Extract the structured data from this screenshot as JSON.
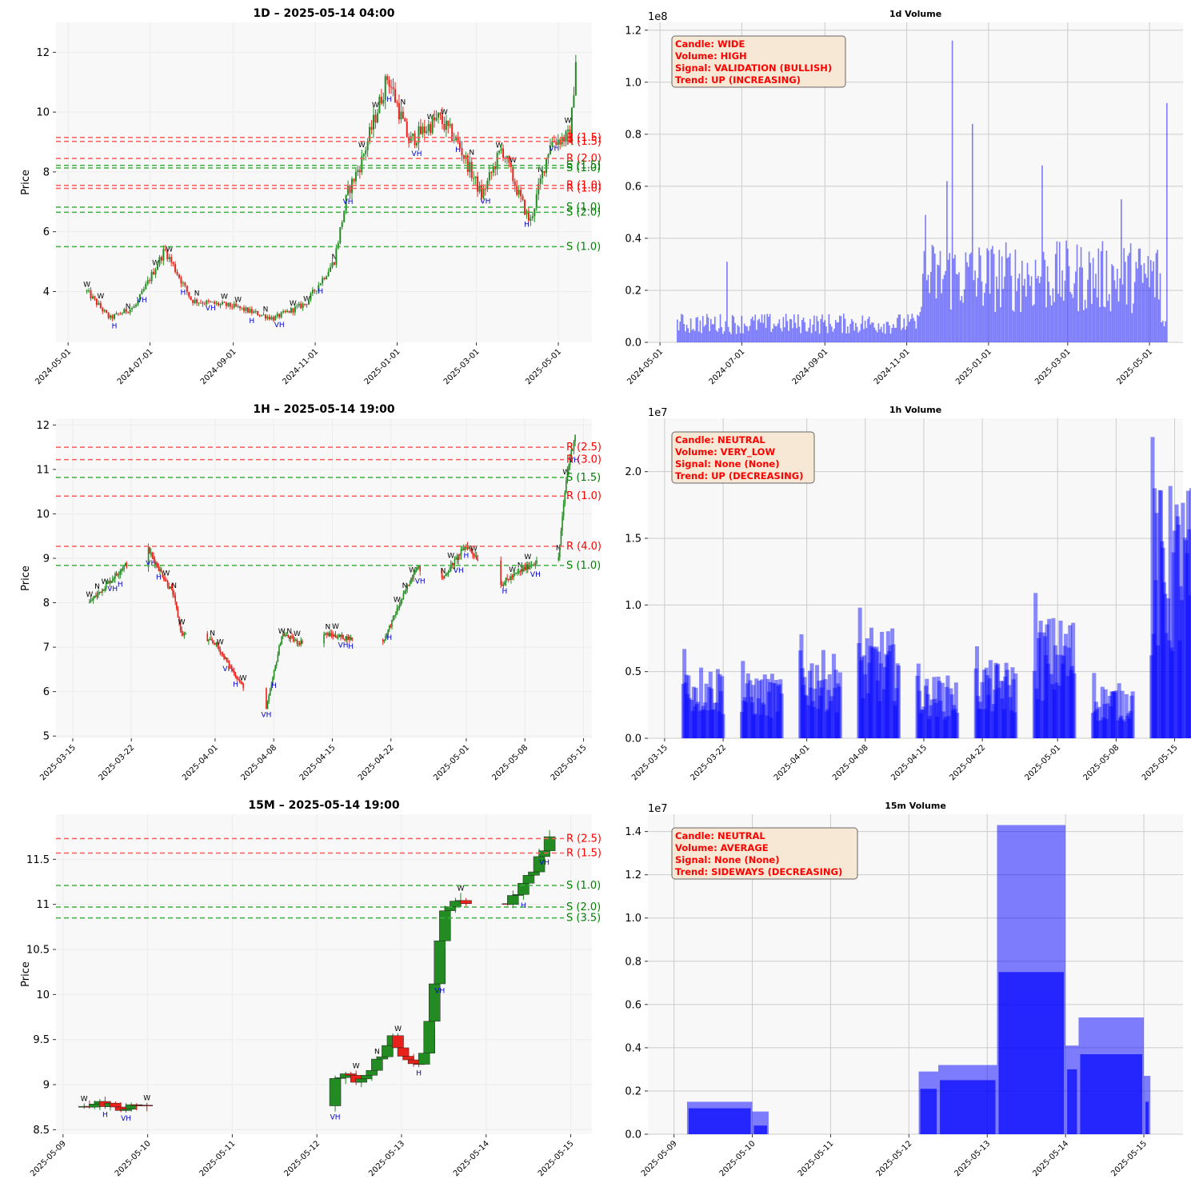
{
  "colors": {
    "up": "#228b22",
    "down": "#e8221a",
    "res": "#ff5a5a",
    "sup": "#3cb03c",
    "vol": "#0000ff",
    "info_text": "#ff0000",
    "info_bg": "#f6e8d4",
    "panel_bg": "#f8f8f8"
  },
  "chart_data": [
    {
      "id": "p1",
      "type": "candlestick",
      "title": "1D – 2025-05-14 04:00",
      "ylabel": "Price",
      "ylim": [
        2.3,
        13.0
      ],
      "yticks": [
        4,
        6,
        8,
        10,
        12
      ],
      "x_start": "2024-04-22",
      "x_end": "2025-05-26",
      "xticks": [
        "2024-05-01",
        "2024-07-01",
        "2024-09-01",
        "2024-11-01",
        "2025-01-01",
        "2025-03-01",
        "2025-05-01"
      ],
      "price_path": [
        [
          "2024-05-15",
          4.0
        ],
        [
          "2024-06-01",
          3.1
        ],
        [
          "2024-06-20",
          3.5
        ],
        [
          "2024-07-12",
          5.4
        ],
        [
          "2024-08-01",
          3.7
        ],
        [
          "2024-09-01",
          3.5
        ],
        [
          "2024-10-01",
          3.1
        ],
        [
          "2024-10-25",
          3.6
        ],
        [
          "2024-11-15",
          5.0
        ],
        [
          "2024-11-25",
          7.3
        ],
        [
          "2024-12-05",
          8.3
        ],
        [
          "2024-12-25",
          11.2
        ],
        [
          "2025-01-10",
          9.0
        ],
        [
          "2025-02-01",
          9.8
        ],
        [
          "2025-02-15",
          9.0
        ],
        [
          "2025-03-05",
          7.2
        ],
        [
          "2025-03-20",
          8.8
        ],
        [
          "2025-04-01",
          7.3
        ],
        [
          "2025-04-10",
          6.3
        ],
        [
          "2025-04-25",
          9.0
        ],
        [
          "2025-05-10",
          9.2
        ],
        [
          "2025-05-14",
          11.8
        ]
      ],
      "levels": [
        {
          "price": 9.15,
          "label": "R (1.5)",
          "kind": "R"
        },
        {
          "price": 9.02,
          "label": "R (1.5)",
          "kind": "R"
        },
        {
          "price": 8.45,
          "label": "R (2.0)",
          "kind": "R"
        },
        {
          "price": 8.22,
          "label": "S (1.5)",
          "kind": "S"
        },
        {
          "price": 8.13,
          "label": "S (1.0)",
          "kind": "S"
        },
        {
          "price": 7.55,
          "label": "R (1.0)",
          "kind": "R"
        },
        {
          "price": 7.45,
          "label": "R (1.0)",
          "kind": "R"
        },
        {
          "price": 6.82,
          "label": "S (1.0)",
          "kind": "S"
        },
        {
          "price": 6.65,
          "label": "S (2.0)",
          "kind": "S"
        },
        {
          "price": 5.5,
          "label": "S (1.0)",
          "kind": "S"
        }
      ]
    },
    {
      "id": "p2",
      "type": "bar",
      "title": "1d Volume",
      "multiplier": "1e8",
      "ylim": [
        0,
        1.23
      ],
      "yticks": [
        0.0,
        0.2,
        0.4,
        0.6,
        0.8,
        1.0,
        1.2
      ],
      "x_start": "2024-04-22",
      "x_end": "2025-05-26",
      "xticks": [
        "2024-05-01",
        "2024-07-01",
        "2024-09-01",
        "2024-11-01",
        "2025-01-01",
        "2025-03-01",
        "2025-05-01"
      ],
      "series_start": "2024-05-14",
      "series_end": "2025-05-14",
      "spikes": [
        [
          "2024-06-20",
          0.31
        ],
        [
          "2024-11-15",
          0.49
        ],
        [
          "2024-12-01",
          0.62
        ],
        [
          "2024-12-05",
          1.16
        ],
        [
          "2024-12-20",
          0.84
        ],
        [
          "2025-02-10",
          0.68
        ],
        [
          "2025-04-10",
          0.55
        ],
        [
          "2025-05-14",
          0.92
        ]
      ],
      "info": [
        "Candle: WIDE",
        "Volume: HIGH",
        "Signal: VALIDATION (BULLISH)",
        "Trend: UP (INCREASING)"
      ]
    },
    {
      "id": "p3",
      "type": "candlestick",
      "title": "1H – 2025-05-14 19:00",
      "ylabel": "Price",
      "ylim": [
        4.95,
        12.15
      ],
      "yticks": [
        5,
        6,
        7,
        8,
        9,
        10,
        11,
        12
      ],
      "x_start": "2025-03-13",
      "x_end": "2025-05-16",
      "xticks": [
        "2025-03-15",
        "2025-03-22",
        "2025-04-01",
        "2025-04-08",
        "2025-04-15",
        "2025-04-22",
        "2025-05-01",
        "2025-05-08",
        "2025-05-15"
      ],
      "price_path": [
        [
          "2025-03-17",
          8.0
        ],
        [
          "2025-03-21",
          8.8
        ],
        [
          "2025-03-24",
          9.2
        ],
        [
          "2025-03-27",
          8.2
        ],
        [
          "2025-03-28",
          7.3
        ],
        [
          "2025-04-01",
          7.1
        ],
        [
          "2025-04-04",
          6.2
        ],
        [
          "2025-04-07",
          5.5
        ],
        [
          "2025-04-09",
          7.3
        ],
        [
          "2025-04-11",
          7.1
        ],
        [
          "2025-04-14",
          7.3
        ],
        [
          "2025-04-17",
          7.2
        ],
        [
          "2025-04-21",
          7.1
        ],
        [
          "2025-04-25",
          8.8
        ],
        [
          "2025-04-28",
          8.5
        ],
        [
          "2025-05-01",
          9.3
        ],
        [
          "2025-05-05",
          8.4
        ],
        [
          "2025-05-09",
          8.9
        ],
        [
          "2025-05-12",
          9.0
        ],
        [
          "2025-05-13",
          10.9
        ],
        [
          "2025-05-14",
          11.8
        ]
      ],
      "levels": [
        {
          "price": 11.5,
          "label": "R (2.5)",
          "kind": "R"
        },
        {
          "price": 11.22,
          "label": "R (3.0)",
          "kind": "R"
        },
        {
          "price": 10.82,
          "label": "S (1.5)",
          "kind": "S"
        },
        {
          "price": 10.4,
          "label": "R (1.0)",
          "kind": "R"
        },
        {
          "price": 9.27,
          "label": "R (4.0)",
          "kind": "R"
        },
        {
          "price": 8.84,
          "label": "S (1.0)",
          "kind": "S"
        }
      ]
    },
    {
      "id": "p4",
      "type": "bar",
      "title": "1h Volume",
      "multiplier": "1e7",
      "ylim": [
        0,
        2.4
      ],
      "yticks": [
        0.0,
        0.5,
        1.0,
        1.5,
        2.0
      ],
      "x_start": "2025-03-13",
      "x_end": "2025-05-16",
      "xticks": [
        "2025-03-15",
        "2025-03-22",
        "2025-04-01",
        "2025-04-08",
        "2025-04-15",
        "2025-04-22",
        "2025-05-01",
        "2025-05-08",
        "2025-05-15"
      ],
      "session_clusters": [
        [
          "2025-03-17",
          0.67
        ],
        [
          "2025-03-24",
          0.58
        ],
        [
          "2025-03-31",
          0.78
        ],
        [
          "2025-04-07",
          0.98
        ],
        [
          "2025-04-14",
          0.56
        ],
        [
          "2025-04-21",
          0.69
        ],
        [
          "2025-04-28",
          1.09
        ],
        [
          "2025-05-05",
          0.49
        ],
        [
          "2025-05-12",
          2.26
        ]
      ],
      "info": [
        "Candle: NEUTRAL",
        "Volume: VERY_LOW",
        "Signal: None (None)",
        "Trend: UP (DECREASING)"
      ]
    },
    {
      "id": "p5",
      "type": "candlestick",
      "title": "15M – 2025-05-14 19:00",
      "ylabel": "Price",
      "ylim": [
        8.45,
        12.0
      ],
      "yticks": [
        8.5,
        9.0,
        9.5,
        10.0,
        10.5,
        11.0,
        11.5
      ],
      "x_start": "2025-05-08T22:00",
      "x_end": "2025-05-15T06:00",
      "xticks": [
        "2025-05-09",
        "2025-05-10",
        "2025-05-11",
        "2025-05-12",
        "2025-05-13",
        "2025-05-14",
        "2025-05-15"
      ],
      "price_path": [
        [
          "2025-05-09T06:00",
          8.75
        ],
        [
          "2025-05-09T12:00",
          8.8
        ],
        [
          "2025-05-09T18:00",
          8.72
        ],
        [
          "2025-05-10T00:00",
          8.8
        ],
        [
          "2025-05-12T06:00",
          9.1
        ],
        [
          "2025-05-12T12:00",
          9.05
        ],
        [
          "2025-05-12T18:00",
          9.3
        ],
        [
          "2025-05-12T21:00",
          9.55
        ],
        [
          "2025-05-13T00:00",
          9.3
        ],
        [
          "2025-05-13T06:00",
          9.2
        ],
        [
          "2025-05-13T12:00",
          10.9
        ],
        [
          "2025-05-13T18:00",
          11.05
        ],
        [
          "2025-05-14T00:00",
          11.05
        ],
        [
          "2025-05-14T06:00",
          10.95
        ],
        [
          "2025-05-14T12:00",
          11.3
        ],
        [
          "2025-05-14T18:00",
          11.7
        ]
      ],
      "levels": [
        {
          "price": 11.73,
          "label": "R (2.5)",
          "kind": "R"
        },
        {
          "price": 11.57,
          "label": "R (1.5)",
          "kind": "R"
        },
        {
          "price": 11.21,
          "label": "S (1.0)",
          "kind": "S"
        },
        {
          "price": 10.97,
          "label": "S (2.0)",
          "kind": "S"
        },
        {
          "price": 10.85,
          "label": "S (3.5)",
          "kind": "S"
        }
      ]
    },
    {
      "id": "p6",
      "type": "bar",
      "title": "15m Volume",
      "multiplier": "1e7",
      "ylim": [
        0,
        1.48
      ],
      "yticks": [
        0.0,
        0.2,
        0.4,
        0.6,
        0.8,
        1.0,
        1.2,
        1.4
      ],
      "x_start": "2025-05-08T16:00",
      "x_end": "2025-05-15T12:00",
      "xticks": [
        "2025-05-09",
        "2025-05-10",
        "2025-05-11",
        "2025-05-12",
        "2025-05-13",
        "2025-05-14",
        "2025-05-15"
      ],
      "blocks": [
        [
          "2025-05-09T04:00",
          "2025-05-10T00:00",
          0.15,
          0.12
        ],
        [
          "2025-05-10T00:00",
          "2025-05-10T05:00",
          0.105,
          0.04
        ],
        [
          "2025-05-12T03:00",
          "2025-05-12T09:00",
          0.29,
          0.21
        ],
        [
          "2025-05-12T09:00",
          "2025-05-13T03:00",
          0.32,
          0.25
        ],
        [
          "2025-05-13T03:00",
          "2025-05-14T00:00",
          1.43,
          0.75
        ],
        [
          "2025-05-14T00:00",
          "2025-05-14T04:00",
          0.41,
          0.3
        ],
        [
          "2025-05-14T04:00",
          "2025-05-15T00:00",
          0.54,
          0.37
        ],
        [
          "2025-05-15T00:00",
          "2025-05-15T02:00",
          0.27,
          0.15
        ]
      ],
      "info": [
        "Candle: NEUTRAL",
        "Volume: AVERAGE",
        "Signal: None (None)",
        "Trend: SIDEWAYS (DECREASING)"
      ]
    }
  ]
}
